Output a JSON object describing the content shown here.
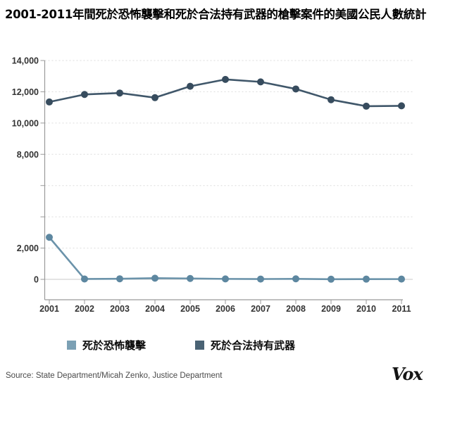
{
  "title": "2001-2011年間死於恐怖襲擊和死於合法持有武器的槍擊案件的美國公民人數統計",
  "chart_data": {
    "type": "line",
    "x": [
      2001,
      2002,
      2003,
      2004,
      2005,
      2006,
      2007,
      2008,
      2009,
      2010,
      2011
    ],
    "series": [
      {
        "name": "死於恐怖襲擊",
        "line_color": "#6b93aa",
        "point_color": "#5d87a0",
        "values": [
          2689,
          25,
          35,
          74,
          56,
          28,
          19,
          33,
          9,
          15,
          17
        ]
      },
      {
        "name": "死於合法持有武器",
        "line_color": "#40576a",
        "point_color": "#374c5e",
        "values": [
          11348,
          11829,
          11920,
          11624,
          12352,
          12791,
          12632,
          12179,
          11493,
          11078,
          11101
        ]
      }
    ],
    "ylim": [
      0,
      14000
    ],
    "y_gridline_step": 2000,
    "y_labeled_ticks": [
      0,
      2000,
      8000,
      10000,
      12000,
      14000
    ],
    "grid": "horizontal dashed, solid zero line",
    "legend_position": "bottom",
    "colors": {
      "gridline": "#dcdcdc",
      "zero_line": "#c9c9c9",
      "axis": "#9a9a9a",
      "tick_label": "#333333"
    }
  },
  "legend": {
    "items": [
      {
        "label": "死於恐怖襲擊",
        "color": "#7ba0b4"
      },
      {
        "label": "死於合法持有武器",
        "color": "#4a6374"
      }
    ]
  },
  "source": "Source: State Department/Micah Zenko, Justice Department",
  "brand": "Vox"
}
